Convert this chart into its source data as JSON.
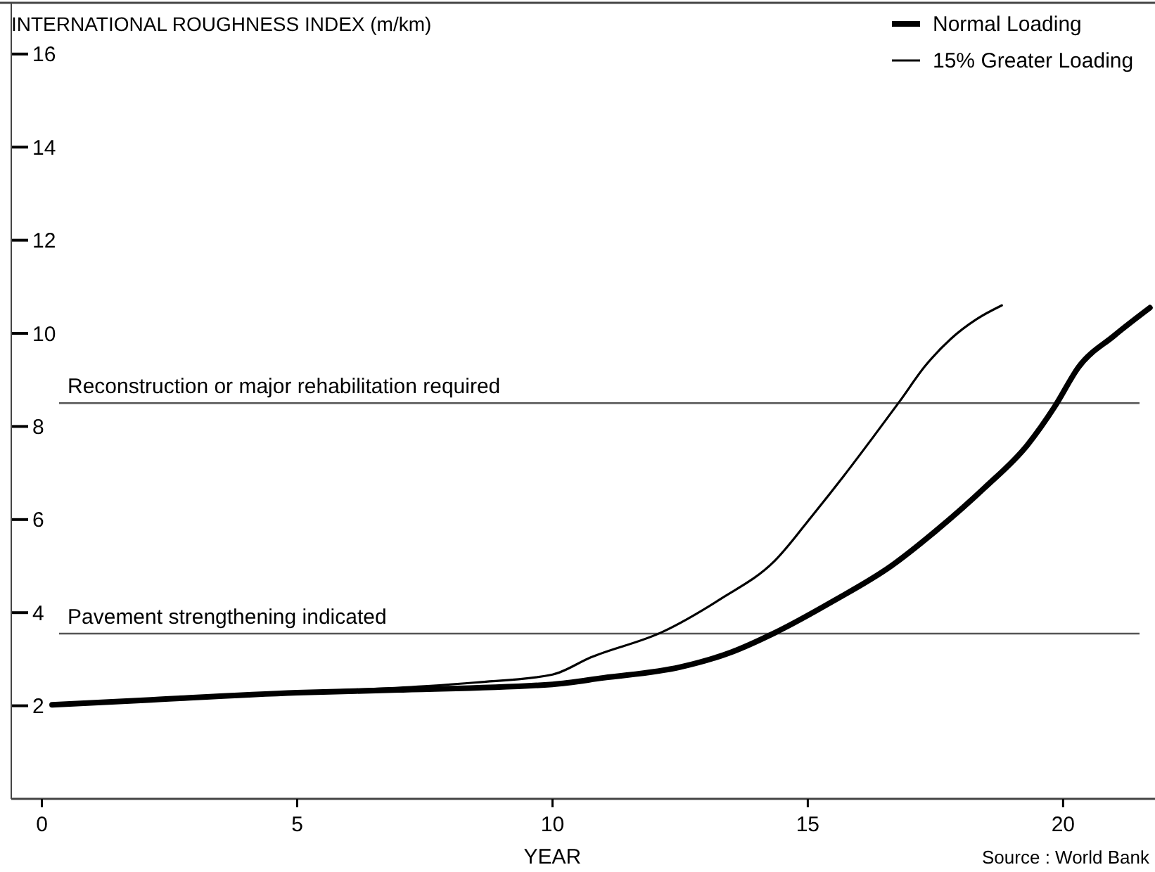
{
  "chart_data": {
    "type": "line",
    "ylabel": "INTERNATIONAL ROUGHNESS INDEX  (m/km)",
    "xlabel": "YEAR",
    "x": [
      0.2,
      2,
      5,
      7,
      10,
      11,
      12.5,
      13.5,
      14.34,
      15.5,
      16.63,
      17.5,
      18.47,
      19.3,
      19.85,
      20.3,
      21,
      21.7
    ],
    "xlim": [
      -0.6,
      21.8
    ],
    "xticks": [
      0,
      5,
      10,
      15,
      20
    ],
    "ylim": [
      0,
      17.1
    ],
    "yticks": [
      2,
      4,
      6,
      8,
      10,
      12,
      14,
      16
    ],
    "series": [
      {
        "name": "Normal Loading",
        "color": "#000000",
        "values": [
          2.02,
          2.12,
          2.28,
          2.34,
          2.46,
          2.6,
          2.83,
          3.15,
          3.56,
          4.25,
          5.0,
          5.75,
          6.69,
          7.6,
          8.45,
          9.27,
          9.95,
          10.55
        ]
      },
      {
        "name": "15% Greater Loading",
        "color": "#000000",
        "x": [
          5,
          7.5,
          8.5,
          10,
          10.75,
          12.16,
          13.3,
          14.34,
          15.1,
          15.7,
          16.3,
          16.8,
          17.3,
          17.8,
          18.3,
          18.8
        ],
        "values": [
          2.3,
          2.42,
          2.5,
          2.67,
          3.04,
          3.59,
          4.3,
          5.1,
          6.1,
          6.93,
          7.8,
          8.54,
          9.3,
          9.88,
          10.3,
          10.6
        ]
      }
    ],
    "ref_lines": [
      {
        "axis": "y",
        "value": 8.5,
        "label": "Reconstruction or major rehabilitation required",
        "color": "#555555"
      },
      {
        "axis": "y",
        "value": 3.55,
        "label": "Pavement strengthening indicated",
        "color": "#555555"
      }
    ],
    "annotations": [
      "Source : World Bank"
    ],
    "legend": "top right"
  }
}
